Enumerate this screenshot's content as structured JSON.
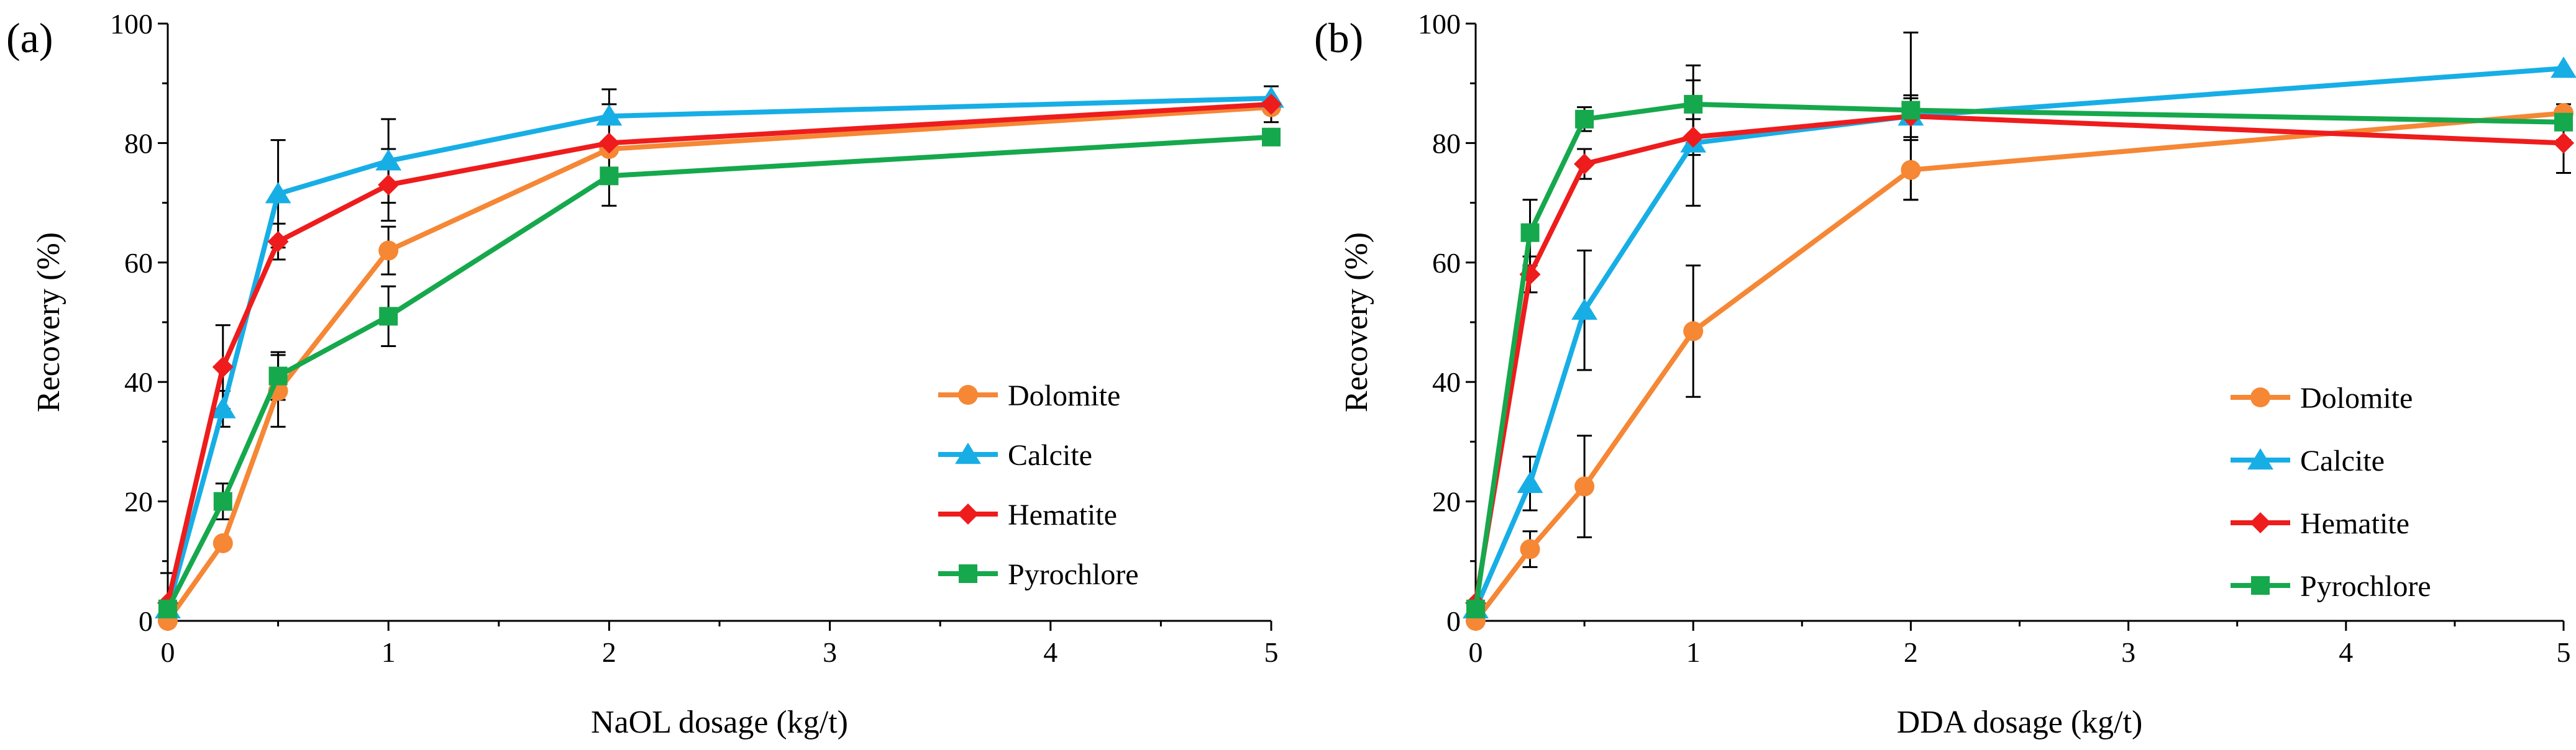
{
  "chart_data": [
    {
      "type": "line",
      "panel_label": "(a)",
      "xlabel": "NaOL dosage (kg/t)",
      "ylabel": "Recovery (%)",
      "xlim": [
        0,
        5
      ],
      "ylim": [
        0,
        100
      ],
      "xticks": [
        0,
        1,
        2,
        3,
        4,
        5
      ],
      "yticks": [
        0,
        20,
        40,
        60,
        80,
        100
      ],
      "legend_position": "bottom-right",
      "x": [
        0,
        0.25,
        0.5,
        1,
        2,
        5
      ],
      "series": [
        {
          "name": "Dolomite",
          "color": "#f58735",
          "marker": "circle",
          "values": [
            0,
            13,
            38.5,
            62,
            79,
            86
          ],
          "errors": [
            null,
            null,
            6,
            4,
            null,
            null
          ]
        },
        {
          "name": "Calcite",
          "color": "#17aee6",
          "marker": "triangle",
          "values": [
            2,
            35.5,
            71.5,
            77,
            84.5,
            87.5
          ],
          "errors": [
            null,
            3,
            9,
            7,
            4.5,
            2
          ]
        },
        {
          "name": "Hematite",
          "color": "#ee1c1c",
          "marker": "diamond",
          "values": [
            3,
            42.5,
            63.5,
            73,
            80,
            86.5
          ],
          "errors": [
            5,
            7,
            3,
            6,
            6.5,
            3
          ]
        },
        {
          "name": "Pyrochlore",
          "color": "#16a84c",
          "marker": "square",
          "values": [
            2,
            20,
            41,
            51,
            74.5,
            81
          ],
          "errors": [
            null,
            3,
            4,
            5,
            5,
            null
          ]
        }
      ]
    },
    {
      "type": "line",
      "panel_label": "(b)",
      "xlabel": "DDA dosage (kg/t)",
      "ylabel": "Recovery (%)",
      "xlim": [
        0,
        5
      ],
      "ylim": [
        0,
        100
      ],
      "xticks": [
        0,
        1,
        2,
        3,
        4,
        5
      ],
      "yticks": [
        0,
        20,
        40,
        60,
        80,
        100
      ],
      "legend_position": "bottom-right",
      "x": [
        0,
        0.25,
        0.5,
        1,
        2,
        5
      ],
      "series": [
        {
          "name": "Dolomite",
          "color": "#f58735",
          "marker": "circle",
          "values": [
            0,
            12,
            22.5,
            48.5,
            75.5,
            85
          ],
          "errors": [
            null,
            3,
            8.5,
            11,
            5,
            null
          ]
        },
        {
          "name": "Calcite",
          "color": "#17aee6",
          "marker": "triangle",
          "values": [
            2,
            23,
            52,
            80,
            84.5,
            92.5
          ],
          "errors": [
            null,
            4.5,
            10,
            10.5,
            14,
            null
          ]
        },
        {
          "name": "Hematite",
          "color": "#ee1c1c",
          "marker": "diamond",
          "values": [
            3,
            58,
            76.5,
            81,
            84.5,
            80
          ],
          "errors": [
            null,
            3,
            2.5,
            3,
            3.5,
            5
          ]
        },
        {
          "name": "Pyrochlore",
          "color": "#16a84c",
          "marker": "square",
          "values": [
            2,
            65,
            84,
            86.5,
            85.5,
            83.5
          ],
          "errors": [
            null,
            5.5,
            2,
            6.5,
            2,
            3
          ]
        }
      ]
    }
  ]
}
